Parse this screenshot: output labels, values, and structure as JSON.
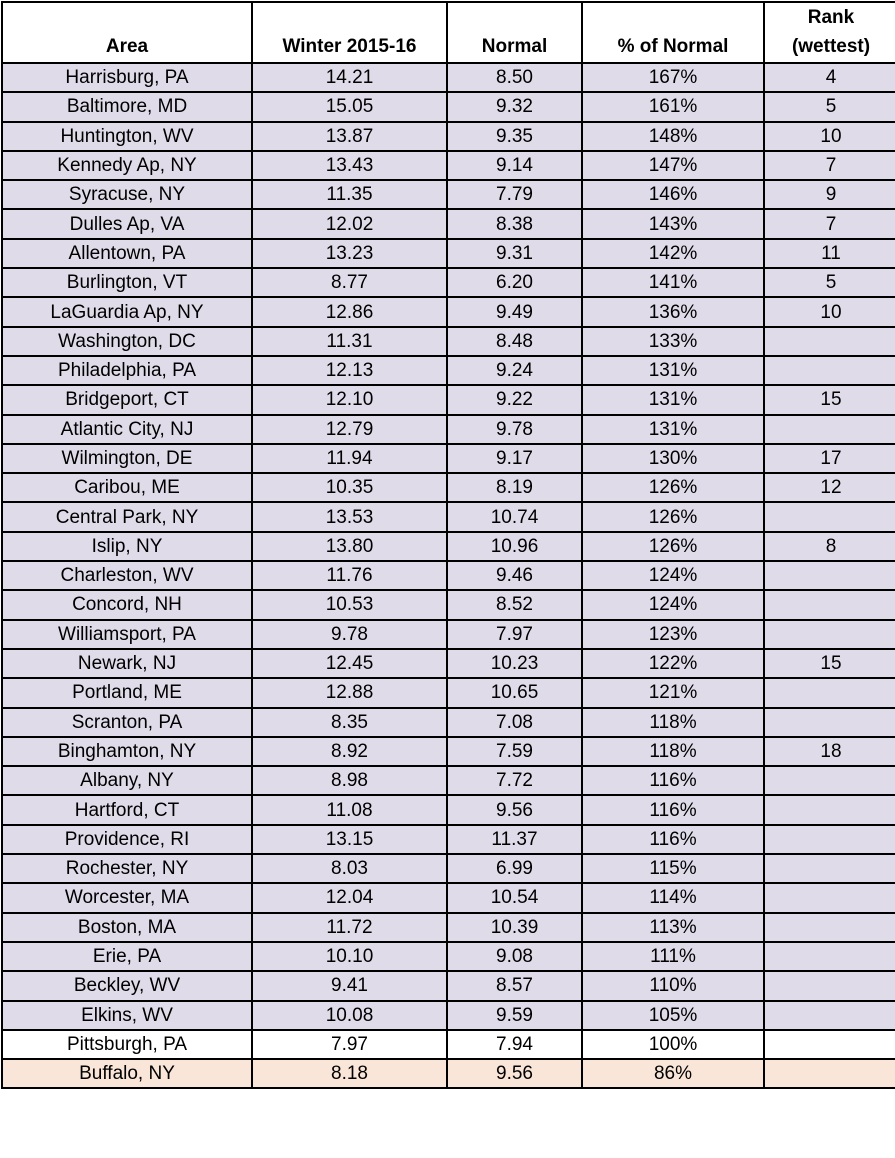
{
  "headers": [
    "Area",
    "Winter 2015-16",
    "Normal",
    "% of Normal",
    "Rank (wettest)"
  ],
  "header_rank_line1": "Rank",
  "header_rank_line2": "(wettest)",
  "colors": {
    "above_normal": "#dfdbe9",
    "normal": "#ffffff",
    "below_normal": "#f9e6d8"
  },
  "rows": [
    {
      "area": "Harrisburg, PA",
      "winter": "14.21",
      "normal": "8.50",
      "pct": "167%",
      "rank": "4",
      "shade": "shade"
    },
    {
      "area": "Baltimore, MD",
      "winter": "15.05",
      "normal": "9.32",
      "pct": "161%",
      "rank": "5",
      "shade": "shade"
    },
    {
      "area": "Huntington, WV",
      "winter": "13.87",
      "normal": "9.35",
      "pct": "148%",
      "rank": "10",
      "shade": "shade"
    },
    {
      "area": "Kennedy Ap, NY",
      "winter": "13.43",
      "normal": "9.14",
      "pct": "147%",
      "rank": "7",
      "shade": "shade"
    },
    {
      "area": "Syracuse, NY",
      "winter": "11.35",
      "normal": "7.79",
      "pct": "146%",
      "rank": "9",
      "shade": "shade"
    },
    {
      "area": "Dulles Ap, VA",
      "winter": "12.02",
      "normal": "8.38",
      "pct": "143%",
      "rank": "7",
      "shade": "shade"
    },
    {
      "area": "Allentown, PA",
      "winter": "13.23",
      "normal": "9.31",
      "pct": "142%",
      "rank": "11",
      "shade": "shade"
    },
    {
      "area": "Burlington, VT",
      "winter": "8.77",
      "normal": "6.20",
      "pct": "141%",
      "rank": "5",
      "shade": "shade"
    },
    {
      "area": "LaGuardia Ap, NY",
      "winter": "12.86",
      "normal": "9.49",
      "pct": "136%",
      "rank": "10",
      "shade": "shade"
    },
    {
      "area": "Washington, DC",
      "winter": "11.31",
      "normal": "8.48",
      "pct": "133%",
      "rank": "",
      "shade": "shade"
    },
    {
      "area": "Philadelphia, PA",
      "winter": "12.13",
      "normal": "9.24",
      "pct": "131%",
      "rank": "",
      "shade": "shade"
    },
    {
      "area": "Bridgeport, CT",
      "winter": "12.10",
      "normal": "9.22",
      "pct": "131%",
      "rank": "15",
      "shade": "shade"
    },
    {
      "area": "Atlantic City, NJ",
      "winter": "12.79",
      "normal": "9.78",
      "pct": "131%",
      "rank": "",
      "shade": "shade"
    },
    {
      "area": "Wilmington, DE",
      "winter": "11.94",
      "normal": "9.17",
      "pct": "130%",
      "rank": "17",
      "shade": "shade"
    },
    {
      "area": "Caribou, ME",
      "winter": "10.35",
      "normal": "8.19",
      "pct": "126%",
      "rank": "12",
      "shade": "shade"
    },
    {
      "area": "Central Park, NY",
      "winter": "13.53",
      "normal": "10.74",
      "pct": "126%",
      "rank": "",
      "shade": "shade"
    },
    {
      "area": "Islip, NY",
      "winter": "13.80",
      "normal": "10.96",
      "pct": "126%",
      "rank": "8",
      "shade": "shade"
    },
    {
      "area": "Charleston, WV",
      "winter": "11.76",
      "normal": "9.46",
      "pct": "124%",
      "rank": "",
      "shade": "shade"
    },
    {
      "area": "Concord, NH",
      "winter": "10.53",
      "normal": "8.52",
      "pct": "124%",
      "rank": "",
      "shade": "shade"
    },
    {
      "area": "Williamsport, PA",
      "winter": "9.78",
      "normal": "7.97",
      "pct": "123%",
      "rank": "",
      "shade": "shade"
    },
    {
      "area": "Newark, NJ",
      "winter": "12.45",
      "normal": "10.23",
      "pct": "122%",
      "rank": "15",
      "shade": "shade"
    },
    {
      "area": "Portland, ME",
      "winter": "12.88",
      "normal": "10.65",
      "pct": "121%",
      "rank": "",
      "shade": "shade"
    },
    {
      "area": "Scranton, PA",
      "winter": "8.35",
      "normal": "7.08",
      "pct": "118%",
      "rank": "",
      "shade": "shade"
    },
    {
      "area": "Binghamton, NY",
      "winter": "8.92",
      "normal": "7.59",
      "pct": "118%",
      "rank": "18",
      "shade": "shade"
    },
    {
      "area": "Albany, NY",
      "winter": "8.98",
      "normal": "7.72",
      "pct": "116%",
      "rank": "",
      "shade": "shade"
    },
    {
      "area": "Hartford, CT",
      "winter": "11.08",
      "normal": "9.56",
      "pct": "116%",
      "rank": "",
      "shade": "shade"
    },
    {
      "area": "Providence, RI",
      "winter": "13.15",
      "normal": "11.37",
      "pct": "116%",
      "rank": "",
      "shade": "shade"
    },
    {
      "area": "Rochester, NY",
      "winter": "8.03",
      "normal": "6.99",
      "pct": "115%",
      "rank": "",
      "shade": "shade"
    },
    {
      "area": "Worcester, MA",
      "winter": "12.04",
      "normal": "10.54",
      "pct": "114%",
      "rank": "",
      "shade": "shade"
    },
    {
      "area": "Boston, MA",
      "winter": "11.72",
      "normal": "10.39",
      "pct": "113%",
      "rank": "",
      "shade": "shade"
    },
    {
      "area": "Erie, PA",
      "winter": "10.10",
      "normal": "9.08",
      "pct": "111%",
      "rank": "",
      "shade": "shade"
    },
    {
      "area": "Beckley, WV",
      "winter": "9.41",
      "normal": "8.57",
      "pct": "110%",
      "rank": "",
      "shade": "shade"
    },
    {
      "area": "Elkins, WV",
      "winter": "10.08",
      "normal": "9.59",
      "pct": "105%",
      "rank": "",
      "shade": "shade"
    },
    {
      "area": "Pittsburgh, PA",
      "winter": "7.97",
      "normal": "7.94",
      "pct": "100%",
      "rank": "",
      "shade": "plain"
    },
    {
      "area": "Buffalo, NY",
      "winter": "8.18",
      "normal": "9.56",
      "pct": "86%",
      "rank": "",
      "shade": "below"
    }
  ]
}
